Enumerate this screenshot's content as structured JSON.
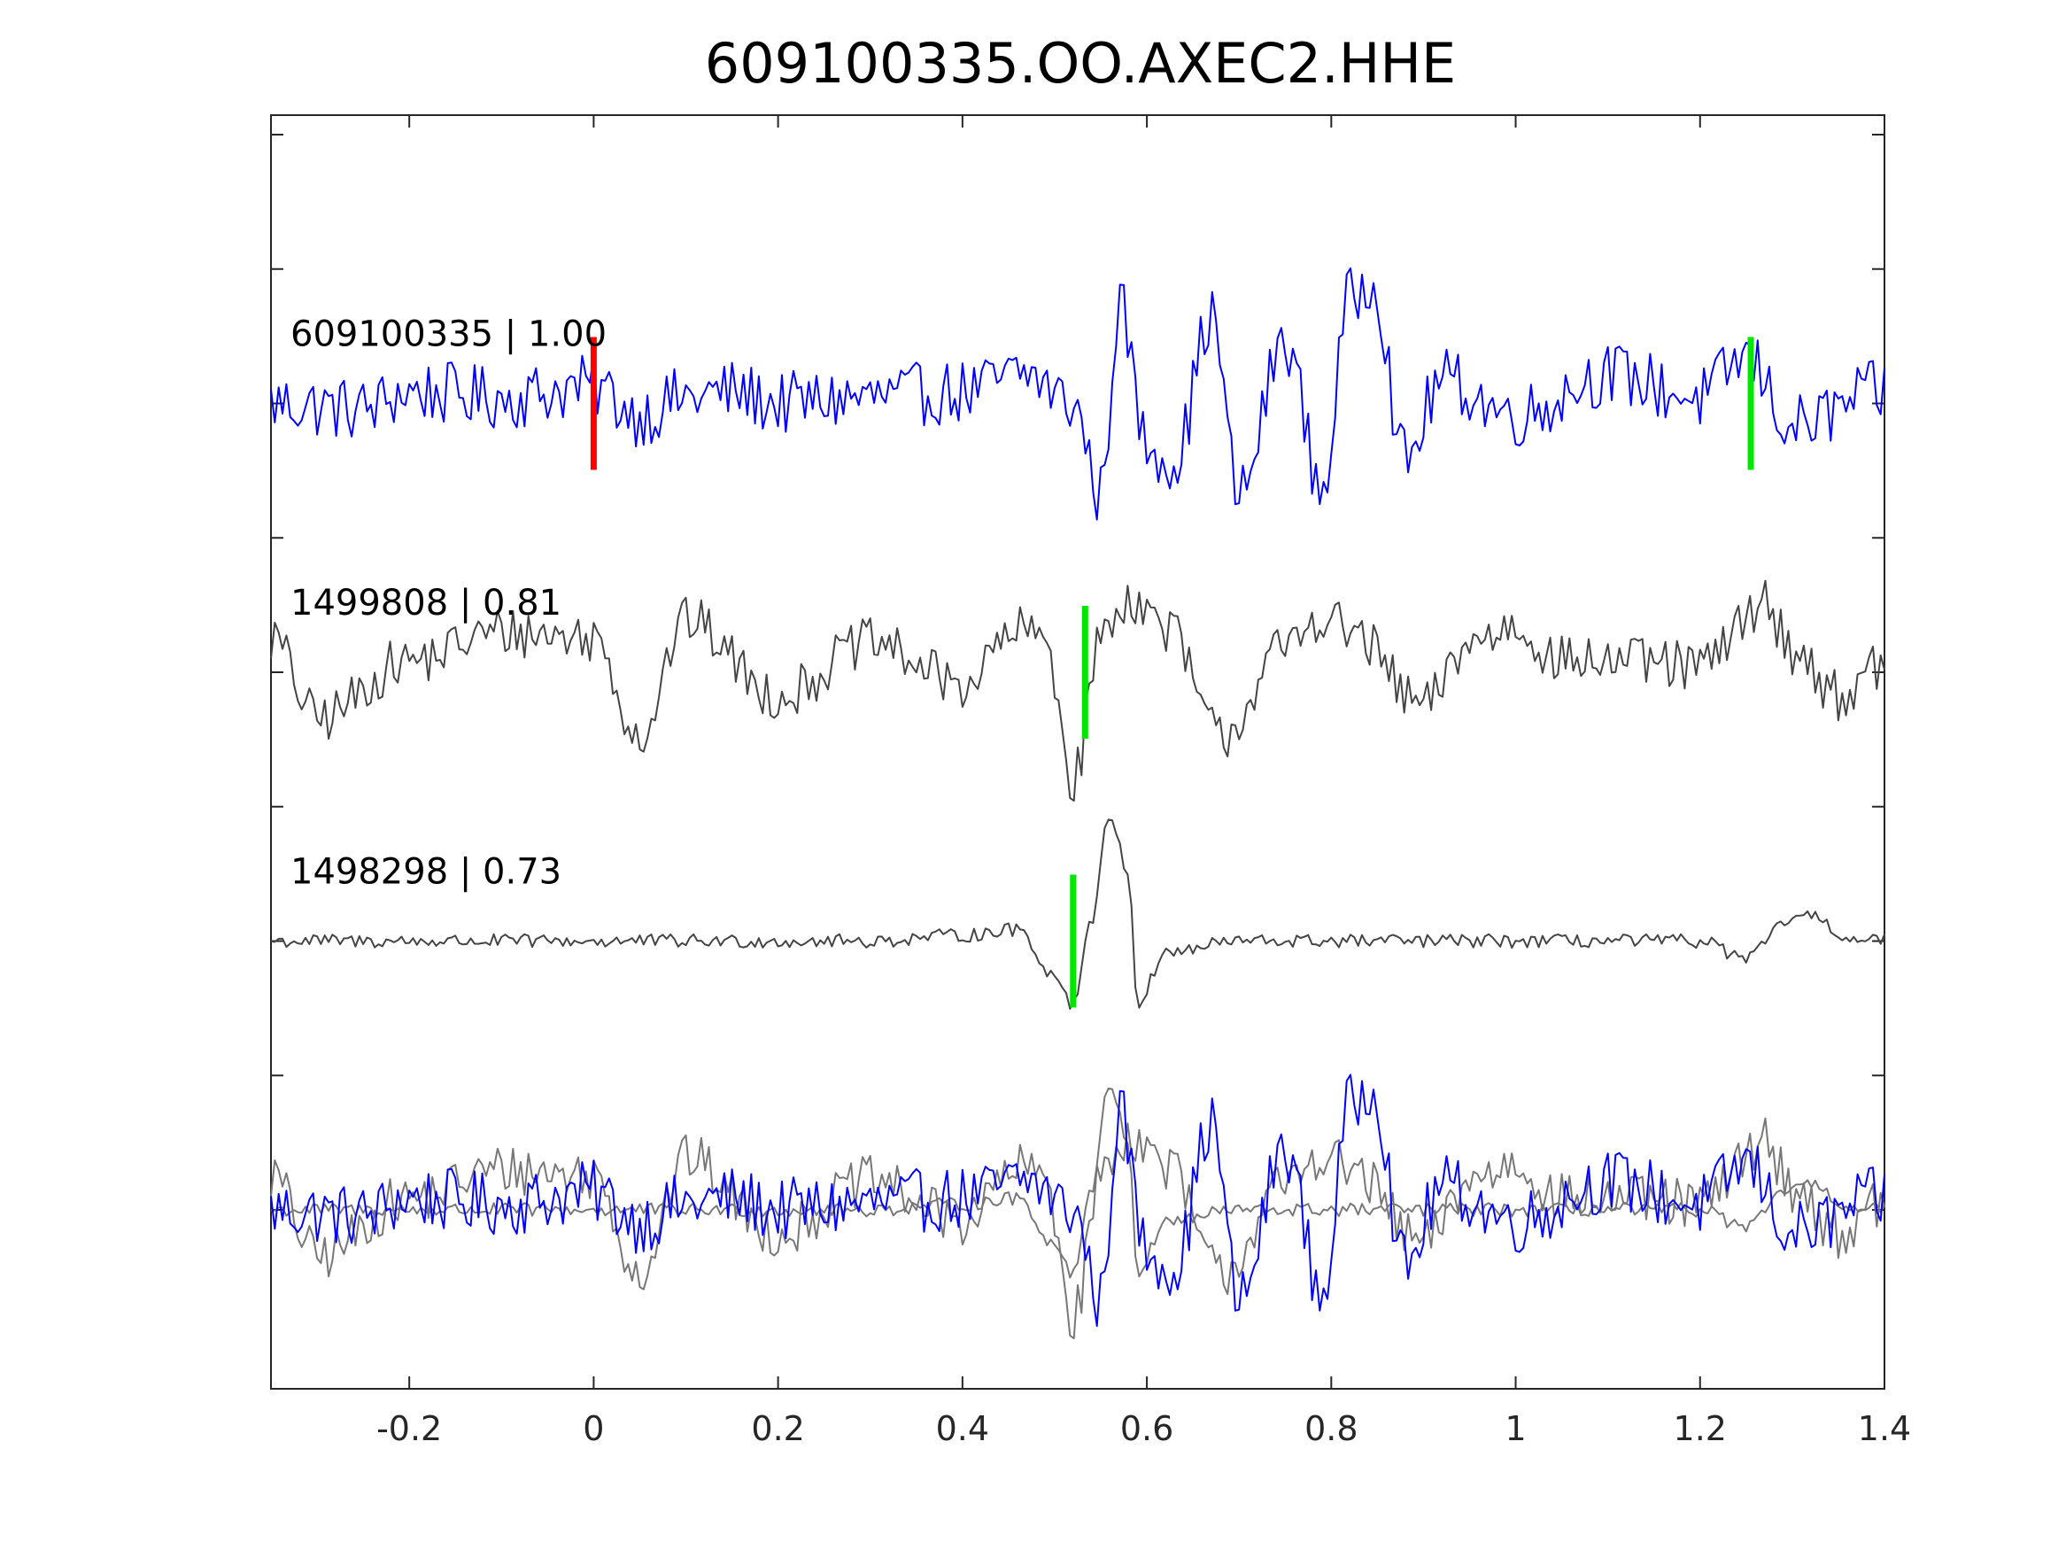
{
  "chart_data": {
    "type": "line",
    "title": "609100335.OO.AXEC2.HHE",
    "xlabel": "",
    "ylabel": "",
    "xlim": [
      -0.35,
      1.4
    ],
    "x_ticks": [
      -0.2,
      0,
      0.2,
      0.4,
      0.6,
      0.8,
      1,
      1.2,
      1.4
    ],
    "x_tick_labels": [
      "-0.2",
      "0",
      "0.2",
      "0.4",
      "0.6",
      "0.8",
      "1",
      "1.2",
      "1.4"
    ],
    "y_ticks_labeled": false,
    "grid": false,
    "series": [
      {
        "name": "609100335",
        "label": "609100335 | 1.00",
        "color": "#0000ff",
        "baseline_row": 1,
        "picks": [
          {
            "x": 0.0,
            "color": "#ff0000"
          },
          {
            "x": 1.255,
            "color": "#00e600"
          }
        ],
        "keypoints": [
          [
            -0.35,
            0.0
          ],
          [
            -0.25,
            -0.05
          ],
          [
            -0.2,
            0.1
          ],
          [
            -0.1,
            0.05
          ],
          [
            0.0,
            0.15
          ],
          [
            0.05,
            -0.1
          ],
          [
            0.1,
            0.05
          ],
          [
            0.15,
            0.1
          ],
          [
            0.2,
            0.0
          ],
          [
            0.3,
            0.05
          ],
          [
            0.4,
            0.1
          ],
          [
            0.47,
            0.25
          ],
          [
            0.52,
            0.0
          ],
          [
            0.55,
            -0.8
          ],
          [
            0.57,
            0.85
          ],
          [
            0.6,
            -0.35
          ],
          [
            0.63,
            -0.5
          ],
          [
            0.67,
            0.75
          ],
          [
            0.7,
            -0.8
          ],
          [
            0.75,
            0.55
          ],
          [
            0.79,
            -0.75
          ],
          [
            0.82,
            0.9
          ],
          [
            0.845,
            1.1
          ],
          [
            0.88,
            -0.5
          ],
          [
            0.92,
            0.2
          ],
          [
            1.0,
            -0.1
          ],
          [
            1.1,
            0.25
          ],
          [
            1.2,
            0.05
          ],
          [
            1.25,
            0.4
          ],
          [
            1.3,
            -0.2
          ],
          [
            1.4,
            0.1
          ]
        ]
      },
      {
        "name": "1499808",
        "label": "1499808 | 0.81",
        "color": "#444444",
        "baseline_row": 2,
        "picks": [
          {
            "x": 0.533,
            "color": "#00e600"
          }
        ],
        "keypoints": [
          [
            -0.35,
            0.3
          ],
          [
            -0.3,
            -0.4
          ],
          [
            -0.2,
            0.1
          ],
          [
            -0.1,
            0.35
          ],
          [
            0.0,
            0.3
          ],
          [
            0.05,
            -0.55
          ],
          [
            0.1,
            0.45
          ],
          [
            0.2,
            -0.2
          ],
          [
            0.3,
            0.25
          ],
          [
            0.4,
            -0.1
          ],
          [
            0.46,
            0.35
          ],
          [
            0.49,
            0.3
          ],
          [
            0.52,
            -0.95
          ],
          [
            0.55,
            0.3
          ],
          [
            0.58,
            0.65
          ],
          [
            0.62,
            0.4
          ],
          [
            0.68,
            -0.55
          ],
          [
            0.75,
            0.2
          ],
          [
            0.79,
            0.5
          ],
          [
            0.82,
            0.35
          ],
          [
            0.9,
            -0.3
          ],
          [
            0.95,
            0.25
          ],
          [
            1.0,
            0.4
          ],
          [
            1.05,
            0.1
          ],
          [
            1.1,
            0.1
          ],
          [
            1.2,
            0.05
          ],
          [
            1.27,
            0.6
          ],
          [
            1.3,
            0.2
          ],
          [
            1.35,
            -0.2
          ],
          [
            1.4,
            0.05
          ]
        ]
      },
      {
        "name": "1498298",
        "label": "1498298 | 0.73",
        "color": "#444444",
        "baseline_row": 3,
        "picks": [
          {
            "x": 0.52,
            "color": "#00e600"
          }
        ],
        "keypoints": [
          [
            -0.35,
            0.0
          ],
          [
            0.0,
            0.0
          ],
          [
            0.2,
            0.0
          ],
          [
            0.3,
            0.0
          ],
          [
            0.4,
            0.05
          ],
          [
            0.46,
            0.1
          ],
          [
            0.5,
            -0.3
          ],
          [
            0.52,
            -0.55
          ],
          [
            0.54,
            0.2
          ],
          [
            0.56,
            1.1
          ],
          [
            0.58,
            0.6
          ],
          [
            0.59,
            -0.55
          ],
          [
            0.62,
            -0.1
          ],
          [
            0.7,
            0.0
          ],
          [
            0.9,
            0.0
          ],
          [
            1.1,
            0.0
          ],
          [
            1.2,
            0.0
          ],
          [
            1.25,
            -0.15
          ],
          [
            1.3,
            0.2
          ],
          [
            1.33,
            0.2
          ],
          [
            1.36,
            0.0
          ],
          [
            1.4,
            0.0
          ]
        ]
      }
    ],
    "overlay_row": 4,
    "overlay_series": [
      "609100335",
      "1499808",
      "1498298"
    ],
    "overlay_colors": [
      "#0000ff",
      "#777777",
      "#777777"
    ]
  }
}
